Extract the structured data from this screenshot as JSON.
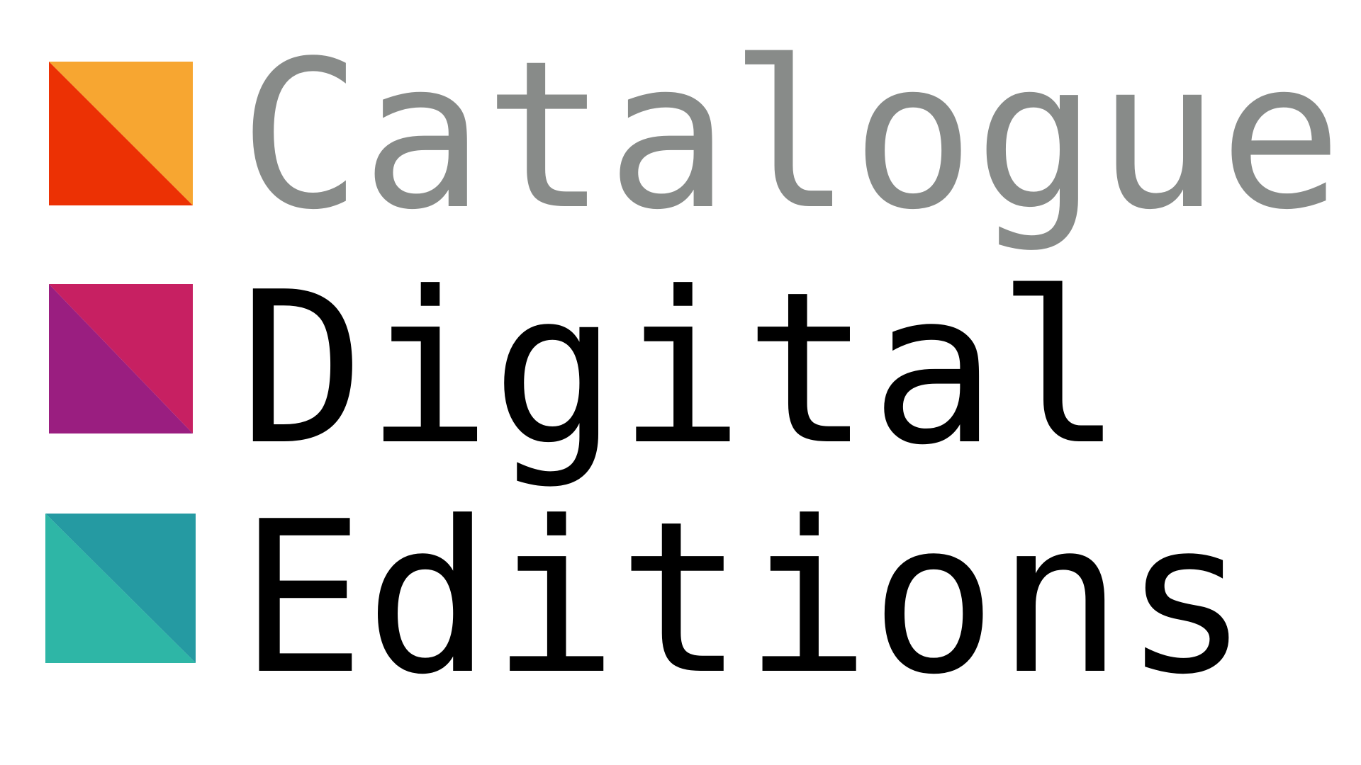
{
  "logo": {
    "rows": [
      {
        "word": "Catalogue",
        "text_color": "#888b89",
        "colors": {
          "top_right": "#f7a631",
          "bottom_left": "#ec3104"
        }
      },
      {
        "word": "Digital",
        "text_color": "#000000",
        "colors": {
          "top_right": "#c72062",
          "bottom_left": "#9a1e80"
        }
      },
      {
        "word": "Editions",
        "text_color": "#000000",
        "colors": {
          "top_right": "#259aa2",
          "bottom_left": "#2eb6a6"
        }
      }
    ]
  }
}
